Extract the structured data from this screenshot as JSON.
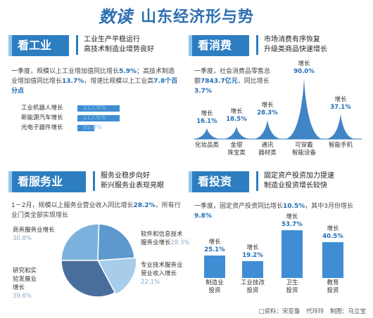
{
  "title": {
    "prefix": "数读",
    "main": "山东经济形与势"
  },
  "industry": {
    "tab": "看工业",
    "subtitle_lines": [
      "工业生产平稳运行",
      "高技术制造业增势良好"
    ],
    "paragraph": [
      {
        "t": "一季度，规模以上工业增加值同比增长"
      },
      {
        "t": "5.9%",
        "hl": true
      },
      {
        "t": "；高技术制造业增加值同比增长"
      },
      {
        "t": "13.7%",
        "hl": true
      },
      {
        "t": "，增速比规模以上工业高"
      },
      {
        "t": "7.8个百分点",
        "hl": true
      }
    ]
  },
  "consumption": {
    "tab": "看消费",
    "subtitle_lines": [
      "市场消费有序恢复",
      "升级类商品快速增长"
    ],
    "paragraph": [
      {
        "t": "一季度，社会消费品零售总额"
      },
      {
        "t": "7843.7亿元",
        "hl": true
      },
      {
        "t": "，同比增长"
      },
      {
        "t": "3.7%",
        "hl": true
      }
    ]
  },
  "services": {
    "tab": "看服务业",
    "subtitle_lines": [
      "服务业稳步向好",
      "新兴服务业表现亮眼"
    ],
    "paragraph": [
      {
        "t": "1－2月，规模以上服务业营业收入同比增长"
      },
      {
        "t": "28.2%",
        "hl": true
      },
      {
        "t": "，所有行业门类全部实现增长"
      }
    ]
  },
  "investment": {
    "tab": "看投资",
    "subtitle_lines": [
      "固定资产投资加力提速",
      "制造业投资增长较快"
    ],
    "paragraph": [
      {
        "t": "一季度，固定资产投资同比增长"
      },
      {
        "t": "10.5%",
        "hl": true
      },
      {
        "t": "，其中3月份增长"
      },
      {
        "t": "9.8%",
        "hl": true
      }
    ]
  },
  "source": "□资料：宋亚鲁　代玲玲　制图：马立宝",
  "chart_data": [
    {
      "id": "industry",
      "type": "bar",
      "orientation": "horizontal",
      "categories": [
        "工业机器人增长",
        "新能源汽车增长",
        "光电子器件增长"
      ],
      "value_labels": [
        "217.8%",
        "217.6%",
        "85.8%"
      ],
      "values": [
        217.8,
        217.6,
        85.8
      ],
      "colors": [
        "#3f8ed4",
        "#3f8ed4",
        "#3f8ed4"
      ]
    },
    {
      "id": "consumption",
      "type": "area",
      "categories": [
        "化妆品类",
        "金银\n珠宝类",
        "通讯\n器材类",
        "可穿戴\n智能设备",
        "智能手机"
      ],
      "value_labels": [
        "增长\n16.1%",
        "增长\n18.5%",
        "增长\n28.3%",
        "增长\n90.0%",
        "增长\n37.1%"
      ],
      "values": [
        16.1,
        18.5,
        28.3,
        90.0,
        37.1
      ],
      "color": "#2e78bf"
    },
    {
      "id": "services",
      "type": "pie",
      "categories": [
        "商务服务业增长",
        "软件和信息技术服务业增长",
        "专业技术服务业营业收入增长",
        "研究和实验发展业增长"
      ],
      "value_labels": [
        "30.8%",
        "28.3%",
        "22.1%",
        "39.6%"
      ],
      "values": [
        30.8,
        28.3,
        22.1,
        39.6
      ],
      "colors": [
        "#7ab2dd",
        "#5d98cf",
        "#a8cdea",
        "#4a6e9c"
      ]
    },
    {
      "id": "investment",
      "type": "bar",
      "categories": [
        "制造业\n投资",
        "工业技改\n投资",
        "卫生\n投资",
        "教育\n投资"
      ],
      "value_labels": [
        "增长\n25.1%",
        "增长\n19.2%",
        "增长\n53.7%",
        "增长\n40.5%"
      ],
      "values": [
        25.1,
        19.2,
        53.7,
        40.5
      ],
      "color": "#3f8ed4"
    }
  ]
}
